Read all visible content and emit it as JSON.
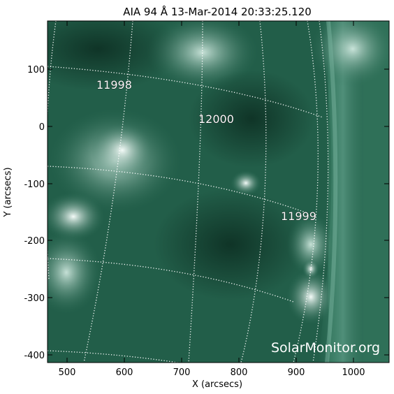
{
  "title": "AIA 94 Å 13-Mar-2014 20:33:25.120",
  "axes": {
    "xlabel": "X (arcsecs)",
    "ylabel": "Y (arcsecs)",
    "xticks": [
      "500",
      "600",
      "700",
      "800",
      "900",
      "1000"
    ],
    "yticks": [
      "100",
      "0",
      "-100",
      "-200",
      "-300",
      "-400"
    ]
  },
  "regions": [
    "11998",
    "12000",
    "11999"
  ],
  "watermark": "SolarMonitor.org",
  "colors": {
    "image_base": "#1f5a45",
    "image_bright": "#e6f3ee",
    "grid": "#ffffff"
  }
}
